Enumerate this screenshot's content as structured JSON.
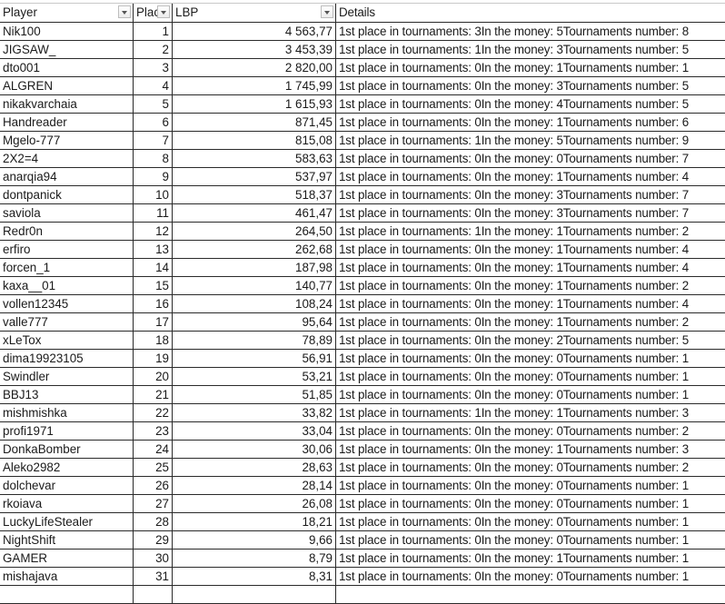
{
  "headers": {
    "player": "Player",
    "place": "Plac",
    "lbp": "LBP",
    "details": "Details"
  },
  "rows": [
    [
      "Nik100",
      "1",
      "4 563,77",
      "1st place in tournaments: 3In the money: 5Tournaments number: 8"
    ],
    [
      "JIGSAW_",
      "2",
      "3 453,39",
      "1st place in tournaments: 1In the money: 3Tournaments number: 5"
    ],
    [
      "dto001",
      "3",
      "2 820,00",
      "1st place in tournaments: 0In the money: 1Tournaments number: 1"
    ],
    [
      "ALGREN",
      "4",
      "1 745,99",
      "1st place in tournaments: 0In the money: 3Tournaments number: 5"
    ],
    [
      "nikakvarchaia",
      "5",
      "1 615,93",
      "1st place in tournaments: 0In the money: 4Tournaments number: 5"
    ],
    [
      "Handreader",
      "6",
      "871,45",
      "1st place in tournaments: 0In the money: 1Tournaments number: 6"
    ],
    [
      "Mgelo-777",
      "7",
      "815,08",
      "1st place in tournaments: 1In the money: 5Tournaments number: 9"
    ],
    [
      "2X2=4",
      "8",
      "583,63",
      "1st place in tournaments: 0In the money: 0Tournaments number: 7"
    ],
    [
      "anarqia94",
      "9",
      "537,97",
      "1st place in tournaments: 0In the money: 1Tournaments number: 4"
    ],
    [
      "dontpanick",
      "10",
      "518,37",
      "1st place in tournaments: 0In the money: 3Tournaments number: 7"
    ],
    [
      "saviola",
      "11",
      "461,47",
      "1st place in tournaments: 0In the money: 3Tournaments number: 7"
    ],
    [
      "Redr0n",
      "12",
      "264,50",
      "1st place in tournaments: 1In the money: 1Tournaments number: 2"
    ],
    [
      "erfiro",
      "13",
      "262,68",
      "1st place in tournaments: 0In the money: 1Tournaments number: 4"
    ],
    [
      "forcen_1",
      "14",
      "187,98",
      "1st place in tournaments: 0In the money: 1Tournaments number: 4"
    ],
    [
      "kaxa__01",
      "15",
      "140,77",
      "1st place in tournaments: 0In the money: 1Tournaments number: 2"
    ],
    [
      "vollen12345",
      "16",
      "108,24",
      "1st place in tournaments: 0In the money: 1Tournaments number: 4"
    ],
    [
      "valle777",
      "17",
      "95,64",
      "1st place in tournaments: 0In the money: 1Tournaments number: 2"
    ],
    [
      "xLeTox",
      "18",
      "78,89",
      "1st place in tournaments: 0In the money: 2Tournaments number: 5"
    ],
    [
      "dima19923105",
      "19",
      "56,91",
      "1st place in tournaments: 0In the money: 0Tournaments number: 1"
    ],
    [
      "Swindler",
      "20",
      "53,21",
      "1st place in tournaments: 0In the money: 0Tournaments number: 1"
    ],
    [
      "BBJ13",
      "21",
      "51,85",
      "1st place in tournaments: 0In the money: 0Tournaments number: 1"
    ],
    [
      "mishmishka",
      "22",
      "33,82",
      "1st place in tournaments: 1In the money: 1Tournaments number: 3"
    ],
    [
      "profi1971",
      "23",
      "33,04",
      "1st place in tournaments: 0In the money: 0Tournaments number: 2"
    ],
    [
      "DonkaBomber",
      "24",
      "30,06",
      "1st place in tournaments: 0In the money: 1Tournaments number: 3"
    ],
    [
      "Aleko2982",
      "25",
      "28,63",
      "1st place in tournaments: 0In the money: 0Tournaments number: 2"
    ],
    [
      "dolchevar",
      "26",
      "28,14",
      "1st place in tournaments: 0In the money: 0Tournaments number: 1"
    ],
    [
      "rkoiava",
      "27",
      "26,08",
      "1st place in tournaments: 0In the money: 0Tournaments number: 1"
    ],
    [
      "LuckyLifeStealer",
      "28",
      "18,21",
      "1st place in tournaments: 0In the money: 0Tournaments number: 1"
    ],
    [
      "NightShift",
      "29",
      "9,66",
      "1st place in tournaments: 0In the money: 0Tournaments number: 1"
    ],
    [
      "GAMER",
      "30",
      "8,79",
      "1st place in tournaments: 0In the money: 1Tournaments number: 1"
    ],
    [
      "mishajava",
      "31",
      "8,31",
      "1st place in tournaments: 0In the money: 0Tournaments number: 1"
    ]
  ]
}
